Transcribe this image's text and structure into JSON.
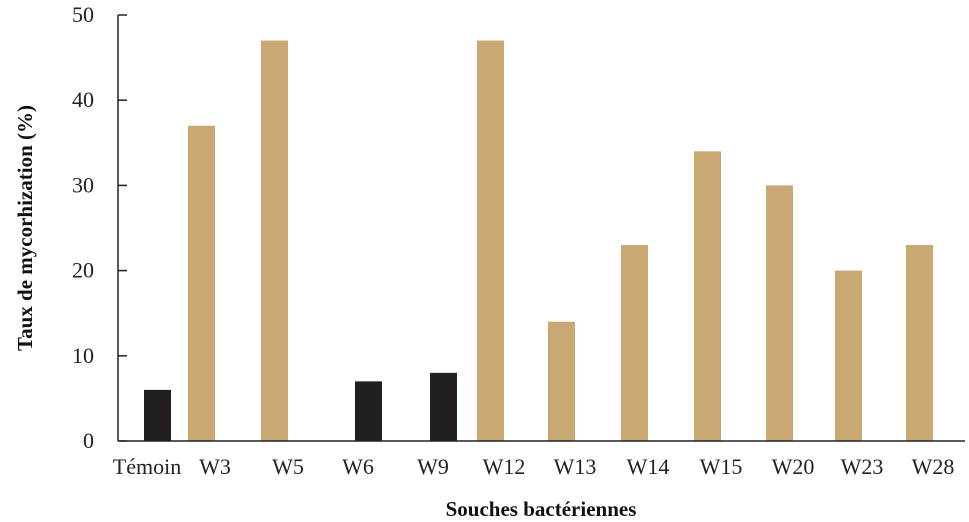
{
  "chart_data": {
    "type": "bar",
    "title": "",
    "xlabel": "Souches bactériennes",
    "ylabel": "Taux de mycorhization (%)",
    "ylim": [
      0,
      50
    ],
    "yticks": [
      0,
      10,
      20,
      30,
      40,
      50
    ],
    "grid": false,
    "legend": "none",
    "categories": [
      "Témoin",
      "W3",
      "W5",
      "W6",
      "W9",
      "W12",
      "W13",
      "W14",
      "W15",
      "W20",
      "W23",
      "W28"
    ],
    "values": [
      6,
      37,
      47,
      7,
      8,
      47,
      14,
      23,
      34,
      30,
      20,
      23
    ],
    "bar_colors": [
      "#231f20",
      "#c9a874",
      "#c9a874",
      "#231f20",
      "#231f20",
      "#c9a874",
      "#c9a874",
      "#c9a874",
      "#c9a874",
      "#c9a874",
      "#c9a874",
      "#c9a874"
    ]
  },
  "colors": {
    "dark_bar": "#231f20",
    "tan_bar": "#c9a874",
    "axis": "#222222"
  }
}
